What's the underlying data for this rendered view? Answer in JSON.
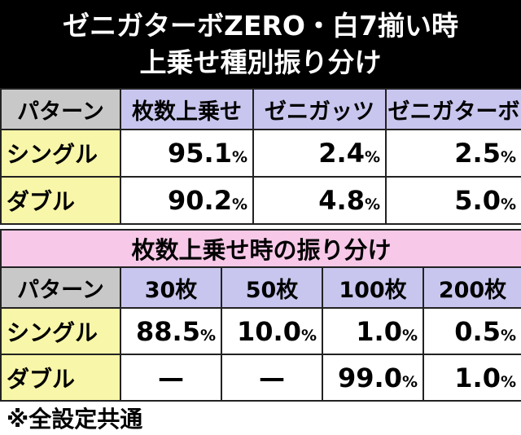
{
  "title": {
    "line1": "ゼニガターボZERO・白7揃い時",
    "line2": "上乗せ種別振り分け"
  },
  "table1": {
    "headers": [
      "パターン",
      "枚数上乗せ",
      "ゼニガッツ",
      "ゼニガターボ"
    ],
    "rows": [
      {
        "label": "シングル",
        "values": [
          "95.1",
          "2.4",
          "2.5"
        ]
      },
      {
        "label": "ダブル",
        "values": [
          "90.2",
          "4.8",
          "5.0"
        ]
      }
    ],
    "unit": "%"
  },
  "table2": {
    "section_title": "枚数上乗せ時の振り分け",
    "headers": [
      "パターン",
      "30枚",
      "50枚",
      "100枚",
      "200枚"
    ],
    "rows": [
      {
        "label": "シングル",
        "values": [
          "88.5",
          "10.0",
          "1.0",
          "0.5"
        ]
      },
      {
        "label": "ダブル",
        "values": [
          "—",
          "—",
          "99.0",
          "1.0"
        ]
      }
    ],
    "unit": "%",
    "dash": "—"
  },
  "note": "※全設定共通",
  "colors": {
    "header_gray": "#c8c8c8",
    "header_blue": "#c8c6ee",
    "row_label_yellow": "#f8f6a8",
    "section_pink": "#f7c8e8",
    "title_bg": "#000000"
  }
}
